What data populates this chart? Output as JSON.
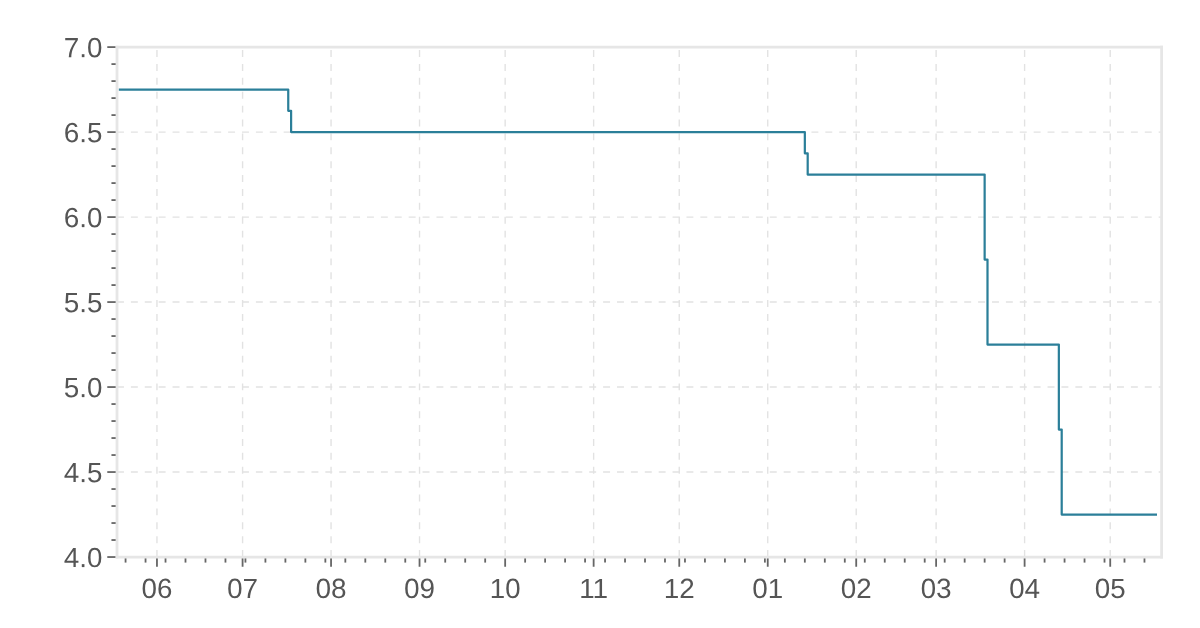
{
  "chart_data": {
    "type": "step",
    "x": [
      "2001-05-19",
      "2001-07-17",
      "2001-07-18",
      "2002-01-14",
      "2002-01-15",
      "2002-03-18",
      "2002-03-19",
      "2002-04-13",
      "2002-04-14",
      "2002-05-17"
    ],
    "series": [
      {
        "color": "#2b7f99",
        "values": [
          6.75,
          6.625,
          6.5,
          6.375,
          6.25,
          5.75,
          5.25,
          4.75,
          4.25,
          4.25
        ]
      }
    ],
    "xlim": [
      "2001-05-18",
      "2002-05-19"
    ],
    "xticks": [
      {
        "value": "2001-06-01",
        "label": "06"
      },
      {
        "value": "2001-07-01",
        "label": "07"
      },
      {
        "value": "2001-08-01",
        "label": "08"
      },
      {
        "value": "2001-09-01",
        "label": "09"
      },
      {
        "value": "2001-10-01",
        "label": "10"
      },
      {
        "value": "2001-11-01",
        "label": "11"
      },
      {
        "value": "2001-12-01",
        "label": "12"
      },
      {
        "value": "2002-01-01",
        "label": "01"
      },
      {
        "value": "2002-02-01",
        "label": "02"
      },
      {
        "value": "2002-03-01",
        "label": "03"
      },
      {
        "value": "2002-04-01",
        "label": "04"
      },
      {
        "value": "2002-05-01",
        "label": "05"
      }
    ],
    "ylim": [
      4.0,
      7.0
    ],
    "yticks": [
      {
        "value": 4.0,
        "label": "4.0"
      },
      {
        "value": 4.5,
        "label": "4.5"
      },
      {
        "value": 5.0,
        "label": "5.0"
      },
      {
        "value": 5.5,
        "label": "5.5"
      },
      {
        "value": 6.0,
        "label": "6.0"
      },
      {
        "value": 6.5,
        "label": "6.5"
      },
      {
        "value": 7.0,
        "label": "7.0"
      }
    ],
    "grid": true,
    "line_style": "solid",
    "marker": "none"
  }
}
